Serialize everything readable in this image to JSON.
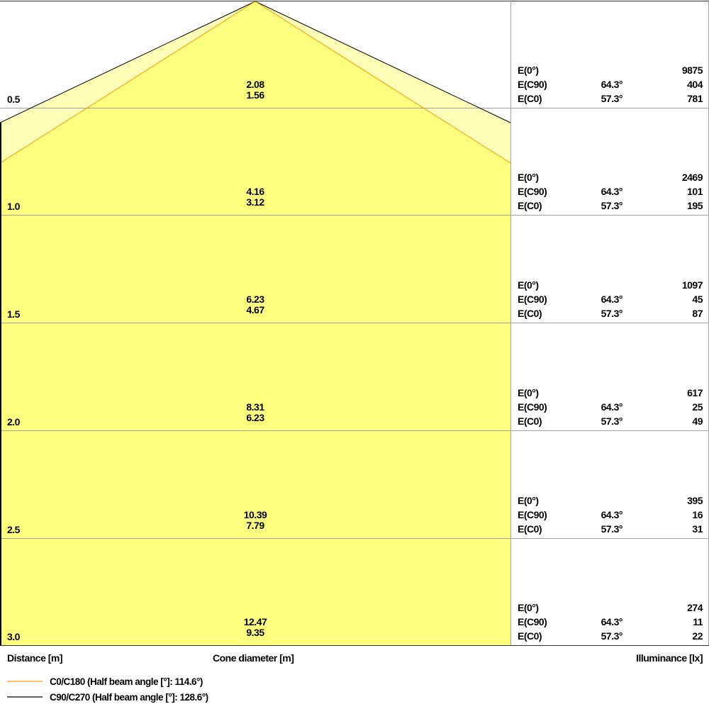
{
  "labels": {
    "distance": "Distance [m]",
    "cone": "Cone diameter [m]",
    "illuminance": "Illuminance [lx]"
  },
  "legend": [
    {
      "label": "C0/C180 (Half beam angle [°]: 114.6°)",
      "color": "#ff9900"
    },
    {
      "label": "C90/C270 (Half beam angle [°]: 128.6°)",
      "color": "#000000"
    }
  ],
  "colors": {
    "inner_fill": "#ffff80",
    "outer_fill": "#ffffb8",
    "grid": "#a0a0a0"
  },
  "rows": [
    {
      "distance": "0.5",
      "d_c90": "2.08",
      "d_c0": "1.56",
      "e0_label": "E(0°)",
      "e0": "9875",
      "ec90_label": "E(C90)",
      "ec90_angle": "64.3°",
      "ec90": "404",
      "ec0_label": "E(C0)",
      "ec0_angle": "57.3°",
      "ec0": "781"
    },
    {
      "distance": "1.0",
      "d_c90": "4.16",
      "d_c0": "3.12",
      "e0_label": "E(0°)",
      "e0": "2469",
      "ec90_label": "E(C90)",
      "ec90_angle": "64.3°",
      "ec90": "101",
      "ec0_label": "E(C0)",
      "ec0_angle": "57.3°",
      "ec0": "195"
    },
    {
      "distance": "1.5",
      "d_c90": "6.23",
      "d_c0": "4.67",
      "e0_label": "E(0°)",
      "e0": "1097",
      "ec90_label": "E(C90)",
      "ec90_angle": "64.3°",
      "ec90": "45",
      "ec0_label": "E(C0)",
      "ec0_angle": "57.3°",
      "ec0": "87"
    },
    {
      "distance": "2.0",
      "d_c90": "8.31",
      "d_c0": "6.23",
      "e0_label": "E(0°)",
      "e0": "617",
      "ec90_label": "E(C90)",
      "ec90_angle": "64.3°",
      "ec90": "25",
      "ec0_label": "E(C0)",
      "ec0_angle": "57.3°",
      "ec0": "49"
    },
    {
      "distance": "2.5",
      "d_c90": "10.39",
      "d_c0": "7.79",
      "e0_label": "E(0°)",
      "e0": "395",
      "ec90_label": "E(C90)",
      "ec90_angle": "64.3°",
      "ec90": "16",
      "ec0_label": "E(C0)",
      "ec0_angle": "57.3°",
      "ec0": "31"
    },
    {
      "distance": "3.0",
      "d_c90": "12.47",
      "d_c0": "9.35",
      "e0_label": "E(0°)",
      "e0": "274",
      "ec90_label": "E(C90)",
      "ec90_angle": "64.3°",
      "ec90": "11",
      "ec0_label": "E(C0)",
      "ec0_angle": "57.3°",
      "ec0": "22"
    }
  ]
}
